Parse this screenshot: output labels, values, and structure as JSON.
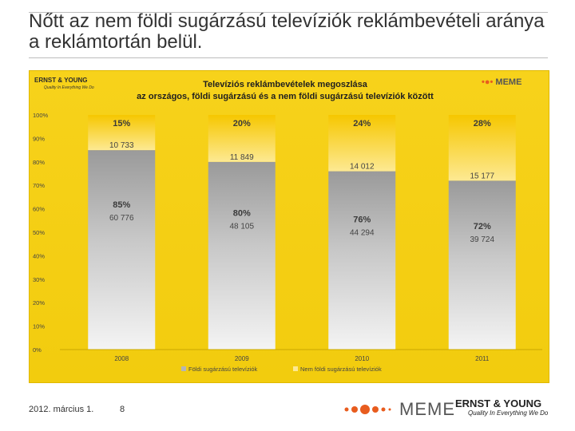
{
  "slide": {
    "title": "Nőtt az nem földi sugárzású televíziók reklámbevételi aránya a reklámtortán belül.",
    "date": "2012. március 1.",
    "page_number": "8"
  },
  "logos": {
    "ey_name": "ERNST & YOUNG",
    "ey_tagline": "Quality In Everything We Do",
    "meme": "MEME"
  },
  "colors": {
    "panel_bg": "#f2cc0e",
    "grey_segment": "#a9a9a9",
    "white_segment": "#f5f5f5",
    "top_segment": "#fce082",
    "meme_dot": "#e85c1e"
  },
  "chart_data": {
    "type": "bar",
    "stacked": true,
    "percent": true,
    "title": "Televíziós reklámbevételek megoszlása az országos, földi sugárzású és a nem földi sugárzású televíziók között",
    "title_line1": "Televíziós reklámbevételek megoszlása",
    "title_line2": "az országos, földi sugárzású és a nem földi sugárzású televíziók között",
    "categories": [
      "2008",
      "2009",
      "2010",
      "2011"
    ],
    "ylim": [
      0,
      100
    ],
    "yticks": [
      "0%",
      "10%",
      "20%",
      "30%",
      "40%",
      "50%",
      "60%",
      "70%",
      "80%",
      "90%",
      "100%"
    ],
    "series": [
      {
        "name": "Földi sugárzású televíziók",
        "values": [
          85,
          80,
          76,
          72
        ],
        "percent_labels": [
          "85%",
          "80%",
          "76%",
          "72%"
        ],
        "amount_labels": [
          "60 776",
          "48 105",
          "44 294",
          "39 724"
        ]
      },
      {
        "name": "Nem földi sugárzású televíziók",
        "values": [
          15,
          20,
          24,
          28
        ],
        "percent_labels": [
          "15%",
          "20%",
          "24%",
          "28%"
        ],
        "amount_labels": [
          "10 733",
          "11 849",
          "14 012",
          "15 177"
        ]
      }
    ],
    "legend_position": "bottom"
  }
}
